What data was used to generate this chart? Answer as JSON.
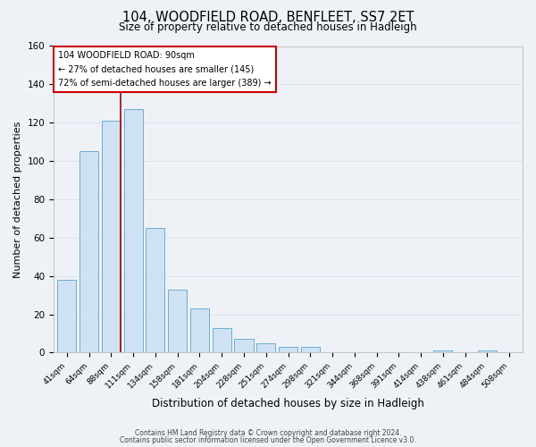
{
  "title": "104, WOODFIELD ROAD, BENFLEET, SS7 2ET",
  "subtitle": "Size of property relative to detached houses in Hadleigh",
  "xlabel": "Distribution of detached houses by size in Hadleigh",
  "ylabel": "Number of detached properties",
  "footer_line1": "Contains HM Land Registry data © Crown copyright and database right 2024.",
  "footer_line2": "Contains public sector information licensed under the Open Government Licence v3.0.",
  "bar_labels": [
    "41sqm",
    "64sqm",
    "88sqm",
    "111sqm",
    "134sqm",
    "158sqm",
    "181sqm",
    "204sqm",
    "228sqm",
    "251sqm",
    "274sqm",
    "298sqm",
    "321sqm",
    "344sqm",
    "368sqm",
    "391sqm",
    "414sqm",
    "438sqm",
    "461sqm",
    "484sqm",
    "508sqm"
  ],
  "bar_heights": [
    38,
    105,
    121,
    127,
    65,
    33,
    23,
    13,
    7,
    5,
    3,
    3,
    0,
    0,
    0,
    0,
    0,
    1,
    0,
    1,
    0
  ],
  "bar_color": "#cfe2f3",
  "bar_edge_color": "#6aaed6",
  "highlight_bar_index": 2,
  "vline_color": "#aa0000",
  "ylim": [
    0,
    160
  ],
  "yticks": [
    0,
    20,
    40,
    60,
    80,
    100,
    120,
    140,
    160
  ],
  "annotation_title": "104 WOODFIELD ROAD: 90sqm",
  "annotation_line1": "← 27% of detached houses are smaller (145)",
  "annotation_line2": "72% of semi-detached houses are larger (389) →",
  "annotation_box_color": "#ffffff",
  "annotation_box_edge": "#cc0000",
  "background_color": "#eef2f7",
  "grid_color": "#dde4ee"
}
